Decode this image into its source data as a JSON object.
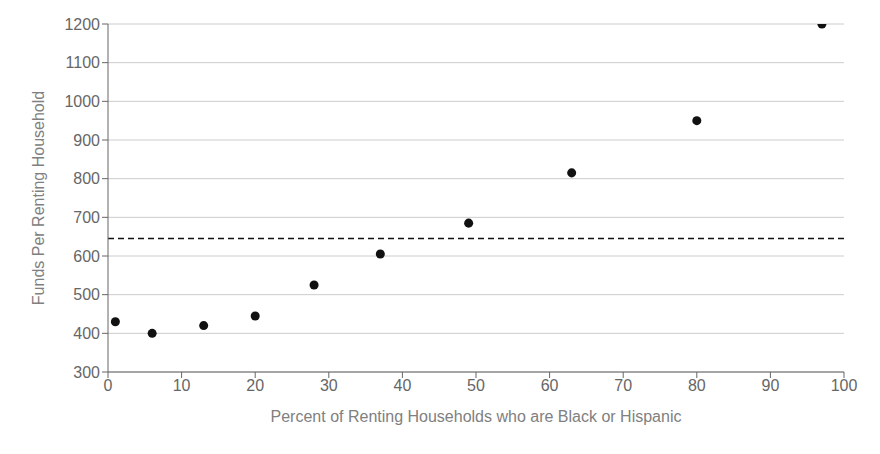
{
  "chart_data": {
    "type": "scatter",
    "x": [
      1,
      6,
      13,
      20,
      28,
      37,
      49,
      63,
      80,
      97
    ],
    "values": [
      430,
      400,
      420,
      445,
      525,
      605,
      685,
      815,
      950,
      1200
    ],
    "xlabel": "Percent of Renting Households who are Black or Hispanic",
    "ylabel": "Funds Per Renting Household",
    "xlim": [
      0,
      100
    ],
    "ylim": [
      300,
      1200
    ],
    "xticks": [
      0,
      10,
      20,
      30,
      40,
      50,
      60,
      70,
      80,
      90,
      100
    ],
    "yticks": [
      300,
      400,
      500,
      600,
      700,
      800,
      900,
      1000,
      1100,
      1200
    ],
    "color": "#111111",
    "grid": "y",
    "reference_line": {
      "y": 645,
      "color": "#111111",
      "line_style": "dashed"
    }
  }
}
